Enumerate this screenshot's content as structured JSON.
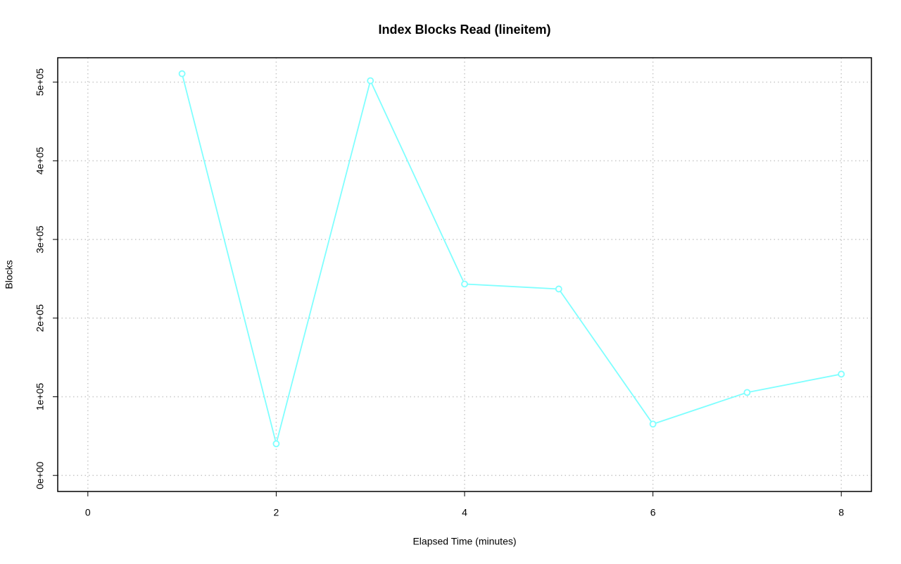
{
  "chart_data": {
    "type": "line",
    "title": "Index Blocks Read (lineitem)",
    "x_label": "Elapsed Time (minutes)",
    "y_label": "Blocks",
    "x": [
      1,
      2,
      3,
      4,
      5,
      6,
      7,
      8
    ],
    "values": [
      510700,
      40250,
      501800,
      243300,
      237000,
      65300,
      105500,
      128800
    ],
    "color": "#7fffff",
    "xlim": [
      -0.32,
      8.32
    ],
    "ylim": [
      -20400,
      531000
    ],
    "xticks": [
      0,
      2,
      4,
      6,
      8
    ],
    "yticks": [
      {
        "value": 0,
        "label": "0e+00"
      },
      {
        "value": 100000,
        "label": "1e+05"
      },
      {
        "value": 200000,
        "label": "2e+05"
      },
      {
        "value": 300000,
        "label": "3e+05"
      },
      {
        "value": 400000,
        "label": "4e+05"
      },
      {
        "value": 500000,
        "label": "5e+05"
      }
    ],
    "grid": true
  }
}
